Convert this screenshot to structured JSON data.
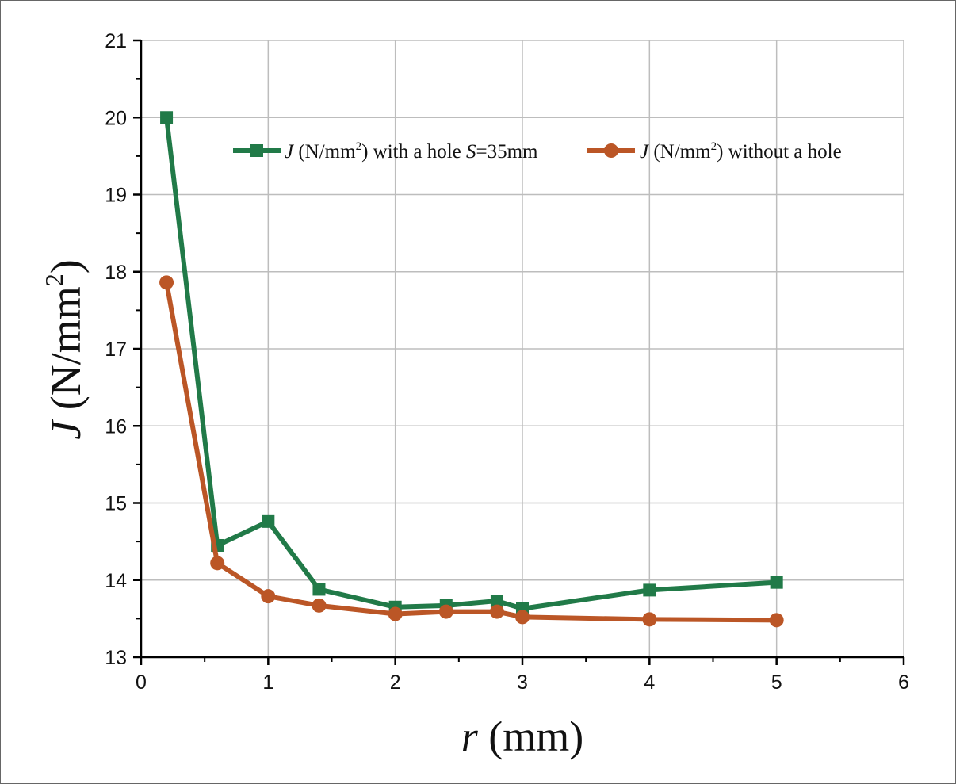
{
  "chart_data": {
    "type": "line",
    "title": "",
    "xlabel": {
      "var": "r",
      "rest": " (mm)"
    },
    "ylabel": {
      "var": "J",
      "rest": " (N/mm",
      "sup": "2",
      "close": ")"
    },
    "xlim": [
      0,
      6
    ],
    "ylim": [
      13,
      21
    ],
    "xticks": [
      "0",
      "1",
      "2",
      "3",
      "4",
      "5",
      "6"
    ],
    "yticks": [
      "13",
      "14",
      "15",
      "16",
      "17",
      "18",
      "19",
      "20",
      "21"
    ],
    "grid": true,
    "legend_position": "top",
    "x": [
      0.2,
      0.6,
      1,
      1.4,
      2,
      2.4,
      2.8,
      3,
      4,
      5
    ],
    "series": [
      {
        "name": "J (N/mm2) with a hole S=35mm",
        "legend": {
          "var": "J",
          "a": " (N/mm",
          "sup": "2",
          "b": ") with a hole ",
          "var2": "S",
          "c": "=35mm"
        },
        "color": "#217a48",
        "marker": "square",
        "values": [
          20.0,
          14.45,
          14.76,
          13.88,
          13.65,
          13.67,
          13.73,
          13.63,
          13.87,
          13.97
        ]
      },
      {
        "name": "J (N/mm2) without a hole",
        "legend": {
          "var": "J",
          "a": " (N/mm",
          "sup": "2",
          "b": ") without a hole"
        },
        "color": "#bb5626",
        "marker": "circle",
        "values": [
          17.86,
          14.22,
          13.79,
          13.67,
          13.56,
          13.59,
          13.59,
          13.52,
          13.49,
          13.48
        ]
      }
    ]
  }
}
